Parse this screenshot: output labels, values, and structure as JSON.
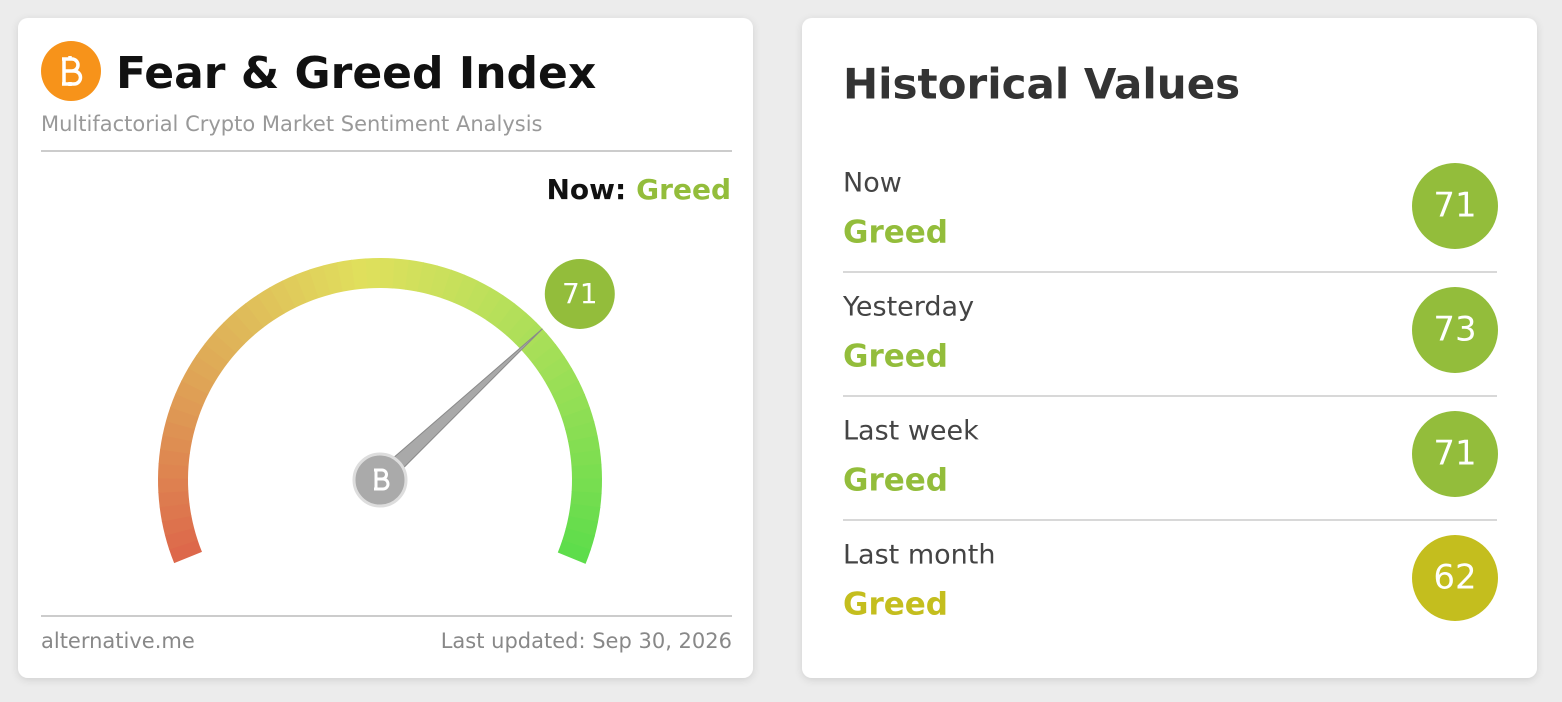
{
  "left": {
    "title": "Fear & Greed Index",
    "subtitle": "Multifactorial Crypto Market Sentiment Analysis",
    "now_label": "Now:",
    "now_classification": "Greed",
    "value": 71,
    "color": "#93bd3b",
    "source": "alternative.me",
    "updated": "Last updated: Sep 30, 2026"
  },
  "right": {
    "title": "Historical Values",
    "rows": [
      {
        "label": "Now",
        "classification": "Greed",
        "value": 71,
        "color": "#93bd3b"
      },
      {
        "label": "Yesterday",
        "classification": "Greed",
        "value": 73,
        "color": "#93bd3b"
      },
      {
        "label": "Last week",
        "classification": "Greed",
        "value": 71,
        "color": "#93bd3b"
      },
      {
        "label": "Last month",
        "classification": "Greed",
        "value": 62,
        "color": "#c4be1e"
      }
    ]
  }
}
